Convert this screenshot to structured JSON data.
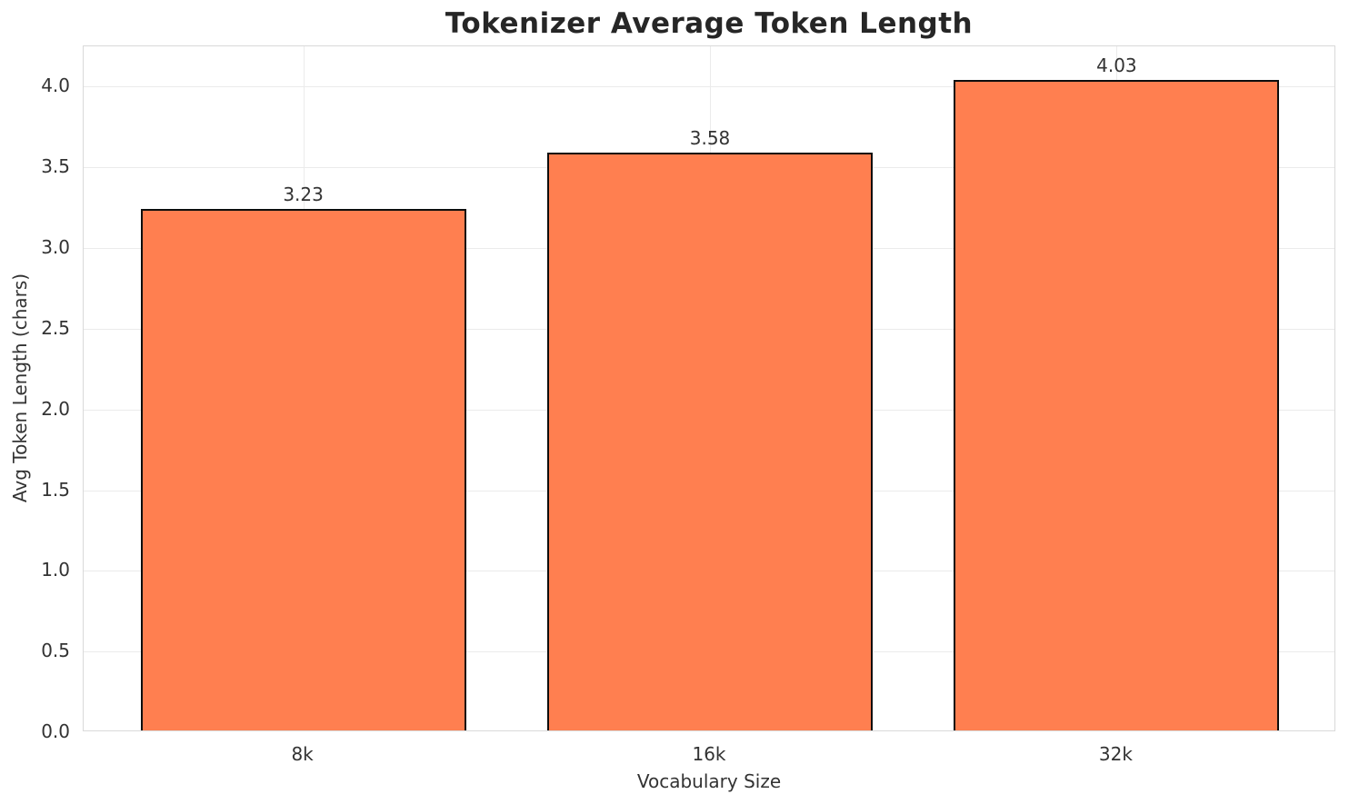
{
  "chart_data": {
    "type": "bar",
    "title": "Tokenizer Average Token Length",
    "xlabel": "Vocabulary Size",
    "ylabel": "Avg Token Length (chars)",
    "categories": [
      "8k",
      "16k",
      "32k"
    ],
    "values": [
      3.23,
      3.58,
      4.03
    ],
    "value_labels": [
      "3.23",
      "3.58",
      "4.03"
    ],
    "ylim": [
      0,
      4.25
    ],
    "yticks": [
      0.0,
      0.5,
      1.0,
      1.5,
      2.0,
      2.5,
      3.0,
      3.5,
      4.0
    ],
    "ytick_labels": [
      "0.0",
      "0.5",
      "1.0",
      "1.5",
      "2.0",
      "2.5",
      "3.0",
      "3.5",
      "4.0"
    ],
    "xlim": [
      -0.54,
      2.54
    ],
    "bar_width_units": 0.8,
    "grid": true,
    "legend_position": "none",
    "colors": {
      "bar_fill": "#FF7F50",
      "bar_edge": "#0d0d0d",
      "grid": "#ebebeb",
      "spine": "#d9d9d9",
      "text": "#333333",
      "title": "#262626",
      "background": "#ffffff"
    }
  }
}
